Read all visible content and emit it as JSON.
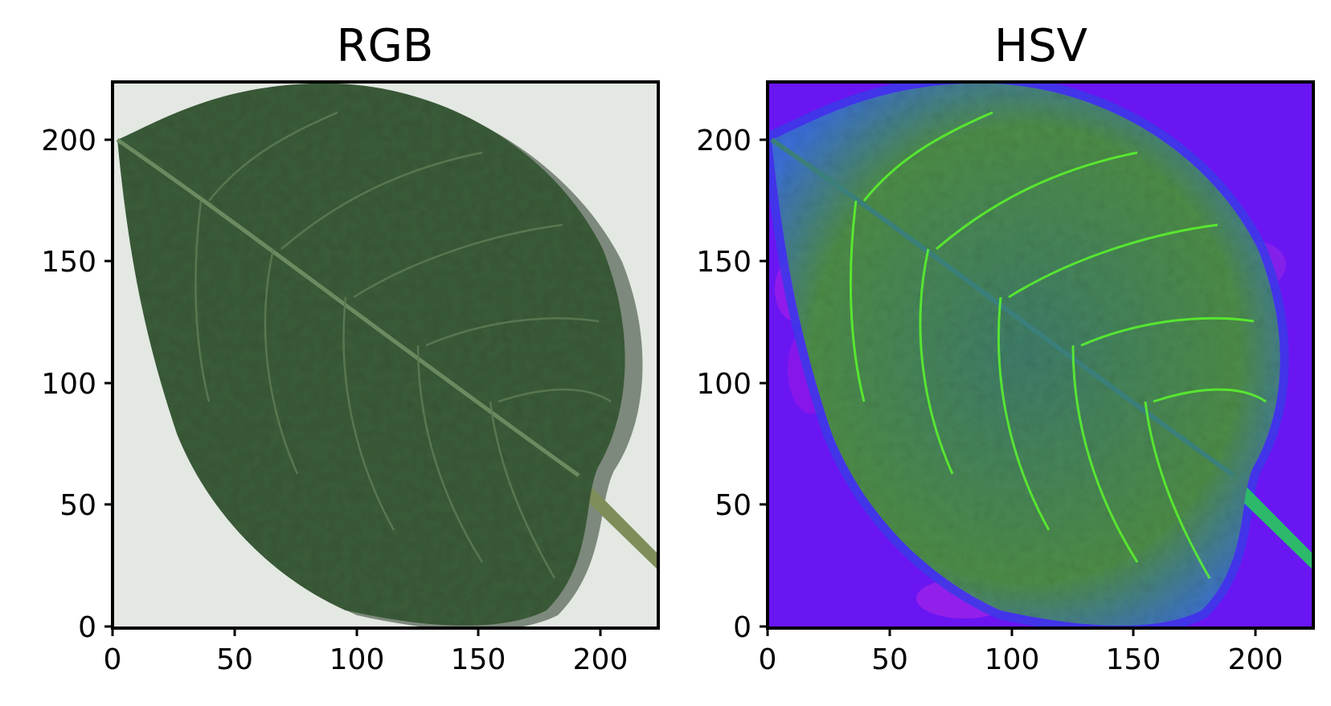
{
  "panels": [
    {
      "title": "RGB",
      "xticks": [
        "0",
        "50",
        "100",
        "150",
        "200"
      ],
      "yticks": [
        "0",
        "50",
        "100",
        "150",
        "200"
      ],
      "xlim": [
        0,
        224
      ],
      "ylim": [
        0,
        224
      ],
      "background_color": "#e3e8e2",
      "leaf_color": "#3b5c39",
      "leaf_dark": "#233f22",
      "vein_color": "#6c8a60",
      "stem_color": "#7f8d5a"
    },
    {
      "title": "HSV",
      "xticks": [
        "0",
        "50",
        "100",
        "150",
        "200"
      ],
      "yticks": [
        "0",
        "50",
        "100",
        "150",
        "200"
      ],
      "xlim": [
        0,
        224
      ],
      "ylim": [
        0,
        224
      ],
      "background_color": "#6a16f2",
      "leaf_color": "#4f8b4c",
      "leaf_dark": "#3a6a55",
      "vein_color": "#5cff2a",
      "stem_color": "#2cba6a"
    }
  ]
}
